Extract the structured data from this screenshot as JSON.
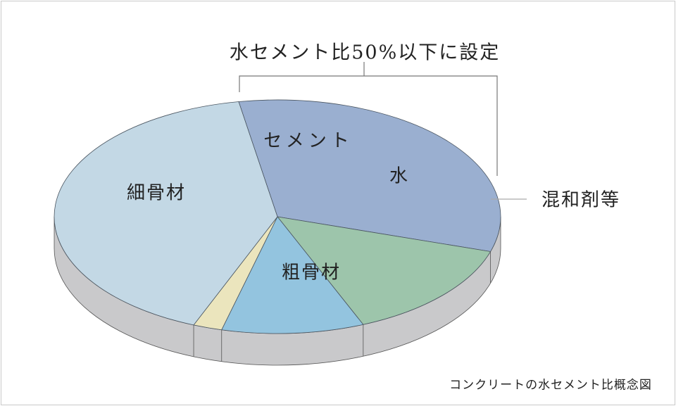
{
  "title": "水セメント比50%以下に設定",
  "caption": "コンクリートの水セメント比概念図",
  "chart_data": {
    "type": "pie",
    "style": "3d",
    "start_angle_deg": -100,
    "slices": [
      {
        "label": "細骨材",
        "value": 32.6,
        "color": "#9aafd0"
      },
      {
        "label": "セメント",
        "value": 13.9,
        "color": "#9dc5ab"
      },
      {
        "label": "水",
        "value": 10.3,
        "color": "#93c4df"
      },
      {
        "label": "混和剤等",
        "value": 2.1,
        "color": "#ebe5bd"
      },
      {
        "label": "粗骨材",
        "value": 41.1,
        "color": "#c3d8e5"
      }
    ],
    "side_color": "#c9c9cb"
  }
}
